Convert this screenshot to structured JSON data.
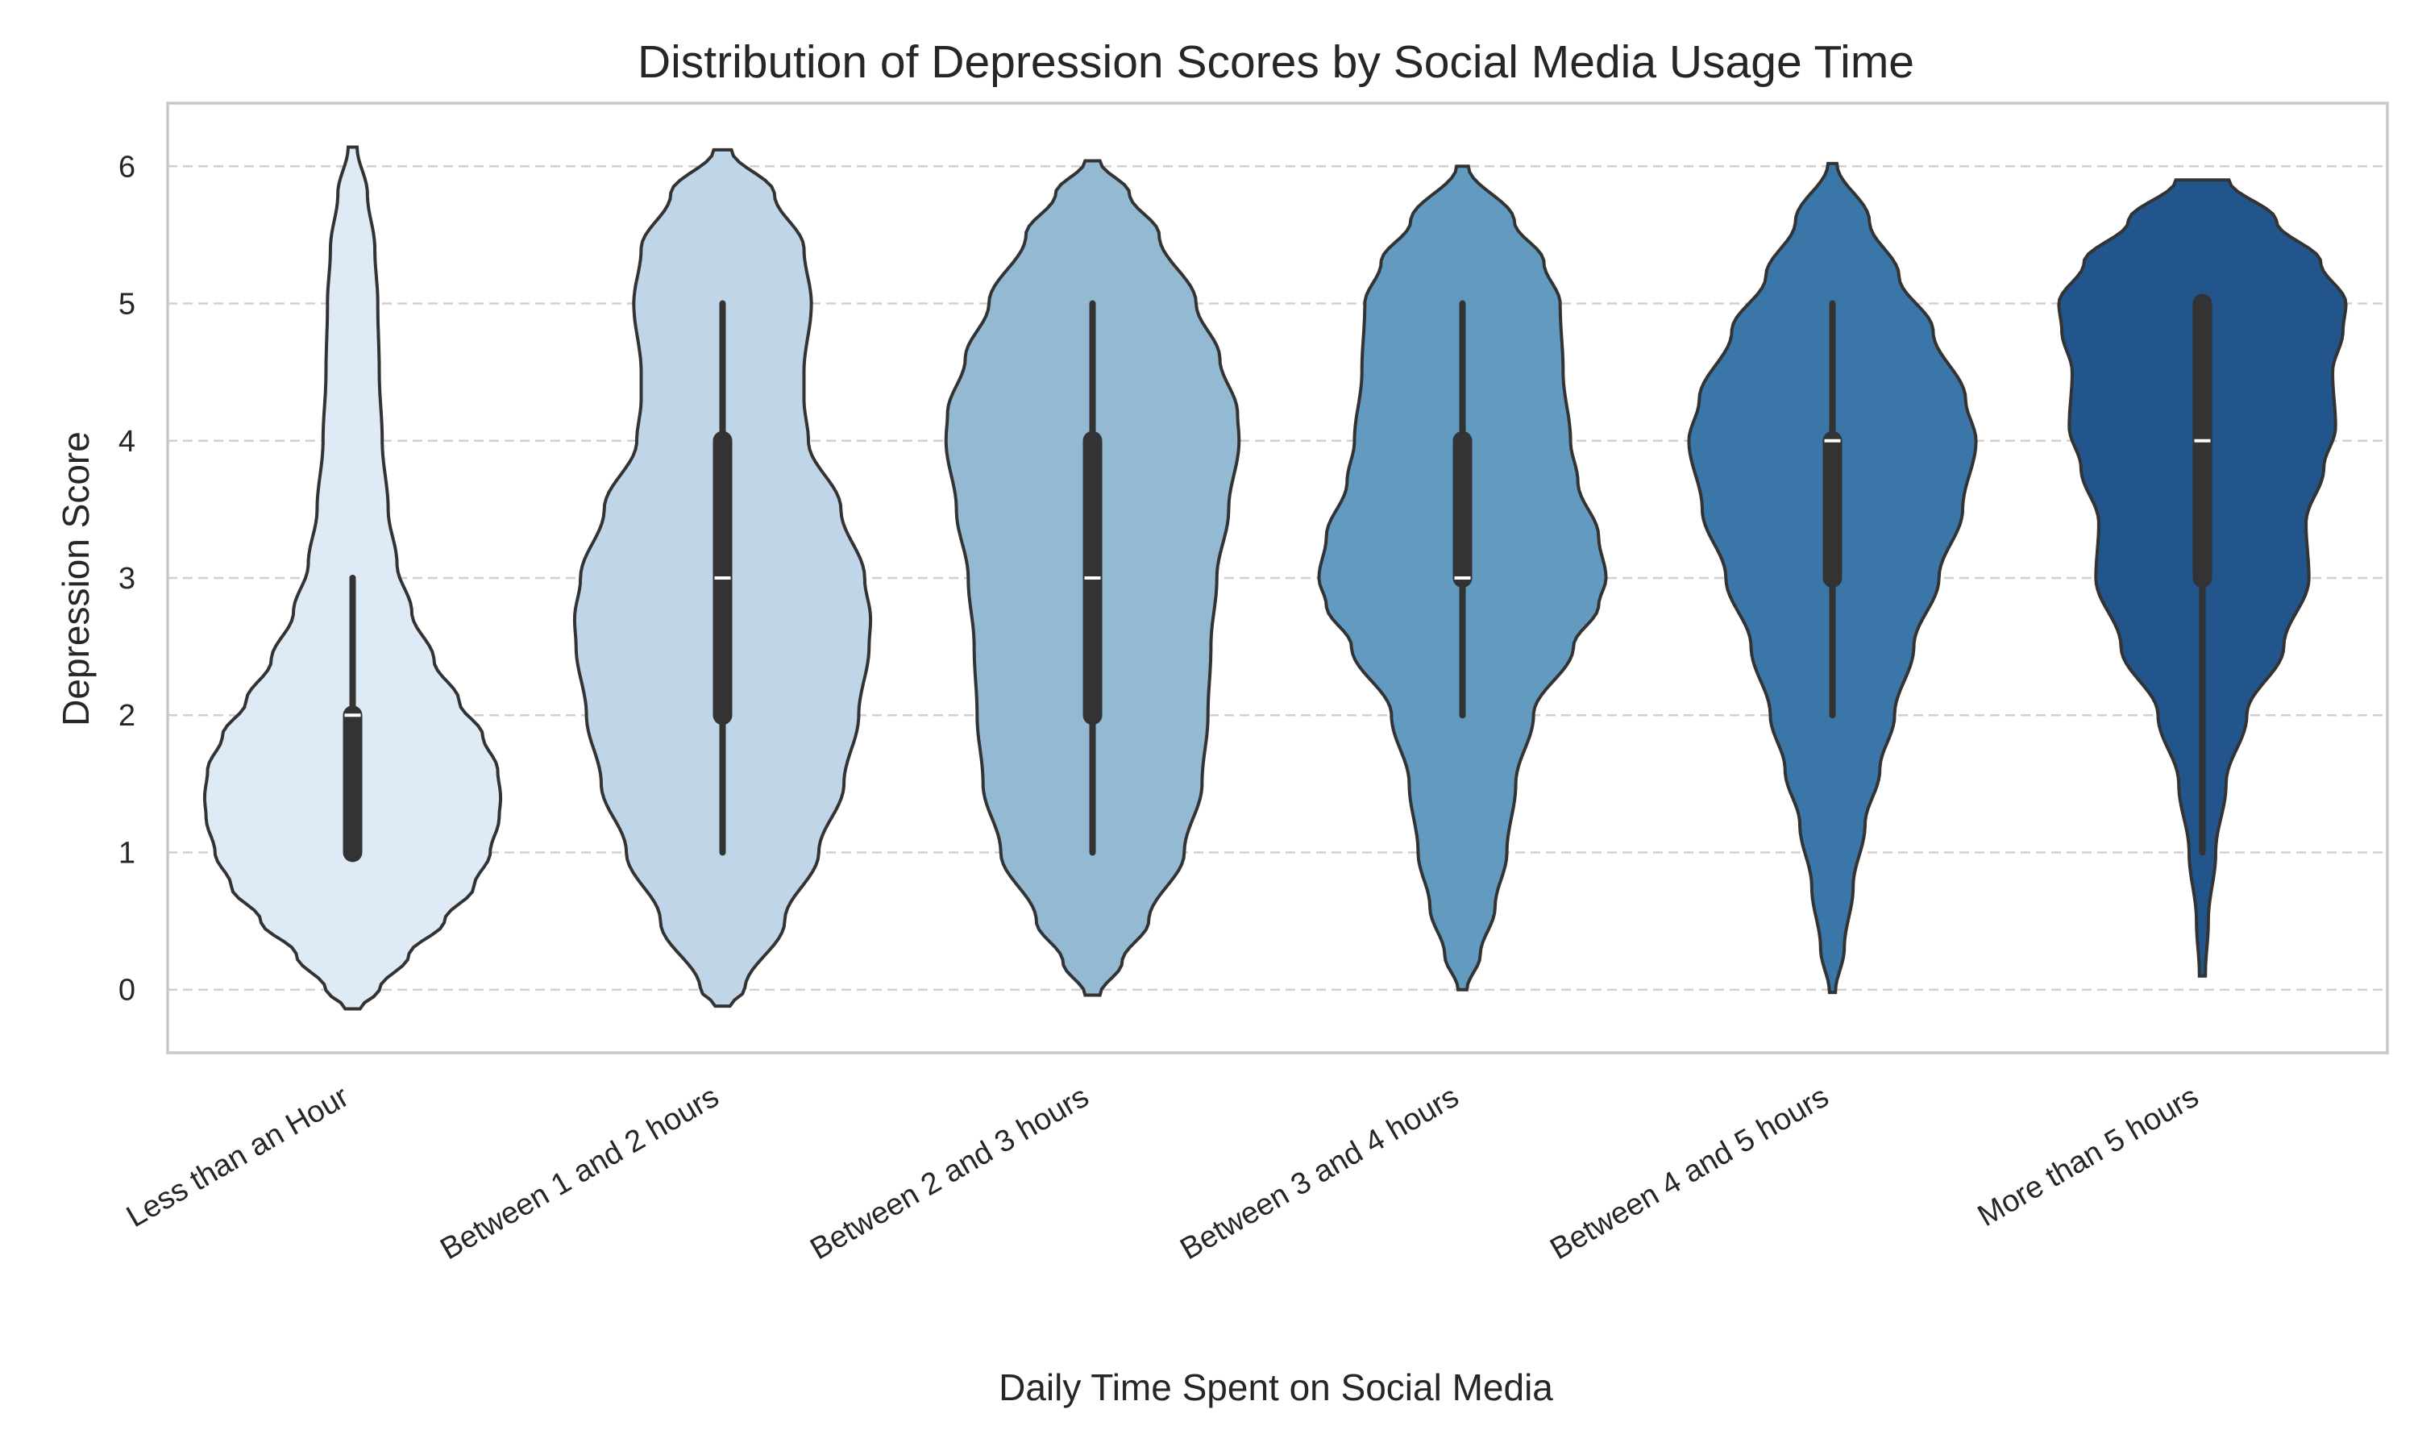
{
  "chart_data": {
    "type": "violin",
    "title": "Distribution of Depression Scores by Social Media Usage Time",
    "xlabel": "Daily Time Spent on Social Media",
    "ylabel": "Depression Score",
    "ylim": [
      -0.46,
      6.46
    ],
    "yticks": [
      0,
      1,
      2,
      3,
      4,
      5,
      6
    ],
    "grid": "horizontal dashed",
    "categories": [
      "Less than an Hour",
      "Between 1 and 2 hours",
      "Between 2 and 3 hours",
      "Between 3 and 4 hours",
      "Between 4 and 5 hours",
      "More than 5 hours"
    ],
    "colors": [
      "#deebf7",
      "#c0d6e8",
      "#94bad3",
      "#629ac0",
      "#3a76a7",
      "#21558c"
    ],
    "series": [
      {
        "category": "Less than an Hour",
        "whisker_low": 1,
        "q1": 1,
        "median": 2,
        "q3": 2,
        "whisker_high": 3,
        "extent": [
          -0.14,
          6.14
        ],
        "density": [
          [
            -0.14,
            0.05
          ],
          [
            0.0,
            0.18
          ],
          [
            0.25,
            0.38
          ],
          [
            0.5,
            0.62
          ],
          [
            0.75,
            0.82
          ],
          [
            1.0,
            0.93
          ],
          [
            1.25,
            0.99
          ],
          [
            1.4,
            1.0
          ],
          [
            1.6,
            0.98
          ],
          [
            1.85,
            0.88
          ],
          [
            2.1,
            0.72
          ],
          [
            2.4,
            0.55
          ],
          [
            2.75,
            0.4
          ],
          [
            3.1,
            0.3
          ],
          [
            3.5,
            0.24
          ],
          [
            4.0,
            0.2
          ],
          [
            4.5,
            0.18
          ],
          [
            5.0,
            0.17
          ],
          [
            5.4,
            0.15
          ],
          [
            5.8,
            0.1
          ],
          [
            6.14,
            0.03
          ]
        ]
      },
      {
        "category": "Between 1 and 2 hours",
        "whisker_low": 1,
        "q1": 2,
        "median": 3,
        "q3": 4,
        "whisker_high": 5,
        "extent": [
          -0.12,
          6.12
        ],
        "density": [
          [
            -0.12,
            0.05
          ],
          [
            0.0,
            0.15
          ],
          [
            0.5,
            0.42
          ],
          [
            1.0,
            0.65
          ],
          [
            1.5,
            0.82
          ],
          [
            2.0,
            0.92
          ],
          [
            2.5,
            0.99
          ],
          [
            2.7,
            1.0
          ],
          [
            3.0,
            0.96
          ],
          [
            3.5,
            0.8
          ],
          [
            4.0,
            0.58
          ],
          [
            4.3,
            0.55
          ],
          [
            4.5,
            0.55
          ],
          [
            5.0,
            0.6
          ],
          [
            5.4,
            0.55
          ],
          [
            5.8,
            0.35
          ],
          [
            6.12,
            0.06
          ]
        ]
      },
      {
        "category": "Between 2 and 3 hours",
        "whisker_low": 1,
        "q1": 2,
        "median": 3,
        "q3": 4,
        "whisker_high": 5,
        "extent": [
          -0.04,
          6.04
        ],
        "density": [
          [
            -0.04,
            0.05
          ],
          [
            0.2,
            0.2
          ],
          [
            0.5,
            0.38
          ],
          [
            1.0,
            0.62
          ],
          [
            1.5,
            0.74
          ],
          [
            2.0,
            0.78
          ],
          [
            2.5,
            0.8
          ],
          [
            3.0,
            0.84
          ],
          [
            3.5,
            0.92
          ],
          [
            4.0,
            0.99
          ],
          [
            4.2,
            0.98
          ],
          [
            4.6,
            0.86
          ],
          [
            5.0,
            0.7
          ],
          [
            5.5,
            0.45
          ],
          [
            5.8,
            0.25
          ],
          [
            6.04,
            0.05
          ]
        ]
      },
      {
        "category": "Between 3 and 4 hours",
        "whisker_low": 2,
        "q1": 3,
        "median": 3,
        "q3": 4,
        "whisker_high": 5,
        "extent": [
          0.0,
          6.0
        ],
        "density": [
          [
            0.0,
            0.03
          ],
          [
            0.25,
            0.12
          ],
          [
            0.6,
            0.22
          ],
          [
            1.0,
            0.3
          ],
          [
            1.5,
            0.36
          ],
          [
            2.0,
            0.48
          ],
          [
            2.5,
            0.75
          ],
          [
            2.8,
            0.92
          ],
          [
            3.0,
            0.97
          ],
          [
            3.3,
            0.92
          ],
          [
            3.7,
            0.78
          ],
          [
            4.0,
            0.73
          ],
          [
            4.5,
            0.68
          ],
          [
            5.0,
            0.66
          ],
          [
            5.3,
            0.55
          ],
          [
            5.6,
            0.35
          ],
          [
            6.0,
            0.04
          ]
        ]
      },
      {
        "category": "Between 4 and 5 hours",
        "whisker_low": 2,
        "q1": 3,
        "median": 4,
        "q3": 4,
        "whisker_high": 5,
        "extent": [
          -0.02,
          6.02
        ],
        "density": [
          [
            -0.02,
            0.02
          ],
          [
            0.3,
            0.08
          ],
          [
            0.75,
            0.14
          ],
          [
            1.2,
            0.22
          ],
          [
            1.6,
            0.32
          ],
          [
            2.0,
            0.42
          ],
          [
            2.5,
            0.55
          ],
          [
            3.0,
            0.72
          ],
          [
            3.5,
            0.88
          ],
          [
            4.0,
            0.97
          ],
          [
            4.3,
            0.9
          ],
          [
            4.8,
            0.68
          ],
          [
            5.2,
            0.45
          ],
          [
            5.6,
            0.25
          ],
          [
            6.02,
            0.03
          ]
        ]
      },
      {
        "category": "More than 5 hours",
        "whisker_low": 1,
        "q1": 3,
        "median": 4,
        "q3": 5,
        "whisker_high": 5,
        "extent": [
          0.1,
          5.9
        ],
        "density": [
          [
            0.1,
            0.02
          ],
          [
            0.5,
            0.04
          ],
          [
            1.0,
            0.09
          ],
          [
            1.5,
            0.16
          ],
          [
            2.0,
            0.3
          ],
          [
            2.5,
            0.55
          ],
          [
            3.0,
            0.72
          ],
          [
            3.4,
            0.7
          ],
          [
            3.8,
            0.82
          ],
          [
            4.1,
            0.9
          ],
          [
            4.5,
            0.88
          ],
          [
            4.8,
            0.95
          ],
          [
            5.0,
            0.97
          ],
          [
            5.3,
            0.8
          ],
          [
            5.6,
            0.5
          ],
          [
            5.9,
            0.18
          ]
        ]
      }
    ]
  }
}
